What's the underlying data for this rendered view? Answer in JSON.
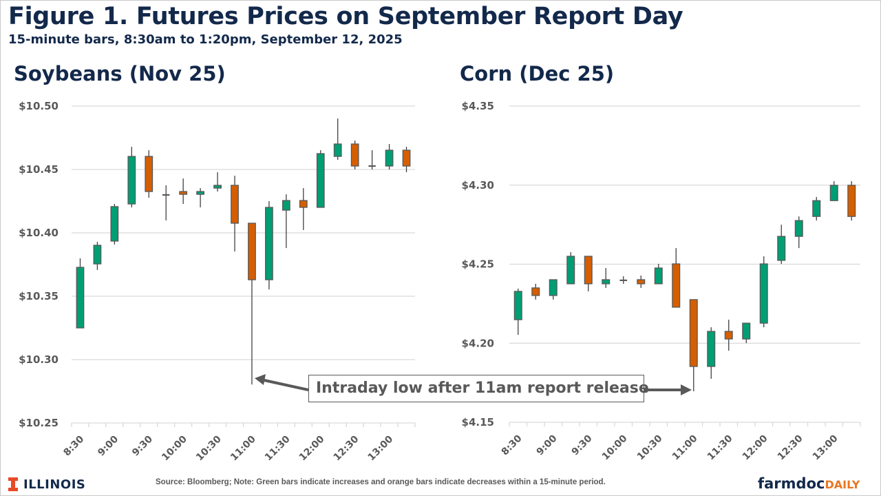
{
  "header": {
    "title": "Figure 1. Futures Prices on September Report Day",
    "subtitle": "15-minute bars, 8:30am to 1:20pm, September 12, 2025"
  },
  "colors": {
    "increase": "#009e73",
    "decrease": "#d55e00",
    "outline": "#595959",
    "wick": "#404040",
    "gridline": "#d9d9d9",
    "title": "#13294b",
    "illinois_orange": "#e84a27",
    "farmdoc_orange": "#e87722"
  },
  "annotation": {
    "text": "Intraday low after 11am report release"
  },
  "footer": {
    "note": "Source: Bloomberg; Note: Green bars indicate increases and orange bars indicate decreases within a 15-minute period.",
    "left_logo": "ILLINOIS",
    "right_logo_a": "farmdoc",
    "right_logo_b": "DAILY"
  },
  "chart_data": [
    {
      "type": "candlestick",
      "title": "Soybeans (Nov 25)",
      "xlabel": "",
      "ylabel": "",
      "ylim": [
        10.25,
        10.5
      ],
      "yticks": [
        10.25,
        10.3,
        10.35,
        10.4,
        10.45,
        10.5
      ],
      "ytick_labels": [
        "$10.25",
        "$10.30",
        "$10.35",
        "$10.40",
        "$10.45",
        "$10.50"
      ],
      "xtick_labels": [
        "8:30",
        "9:00",
        "9:30",
        "10:00",
        "10:30",
        "11:00",
        "11:30",
        "12:00",
        "12:30",
        "13:00"
      ],
      "grid": true,
      "x": [
        "8:30",
        "8:45",
        "9:00",
        "9:15",
        "9:30",
        "9:45",
        "10:00",
        "10:15",
        "10:30",
        "10:45",
        "11:00",
        "11:15",
        "11:30",
        "11:45",
        "12:00",
        "12:15",
        "12:30",
        "12:45",
        "13:00",
        "13:15"
      ],
      "open": [
        10.325,
        10.3755,
        10.3935,
        10.4228,
        10.4603,
        10.4299,
        10.4326,
        10.4304,
        10.4353,
        10.4375,
        10.4076,
        10.363,
        10.4179,
        10.4255,
        10.4201,
        10.4603,
        10.4701,
        10.4527,
        10.4527,
        10.4652
      ],
      "high": [
        10.3799,
        10.3929,
        10.4228,
        10.4679,
        10.4652,
        10.4375,
        10.4429,
        10.4353,
        10.4478,
        10.4451,
        10.4076,
        10.425,
        10.4304,
        10.4353,
        10.4652,
        10.4902,
        10.4728,
        10.4652,
        10.4701,
        10.4679
      ],
      "low": [
        10.325,
        10.3707,
        10.3908,
        10.4201,
        10.4277,
        10.4098,
        10.4228,
        10.4201,
        10.4326,
        10.3853,
        10.2804,
        10.3554,
        10.388,
        10.4022,
        10.4201,
        10.4576,
        10.45,
        10.45,
        10.45,
        10.4478
      ],
      "close": [
        10.3728,
        10.3902,
        10.4207,
        10.4603,
        10.4326,
        10.4299,
        10.4304,
        10.4326,
        10.4375,
        10.4076,
        10.363,
        10.4201,
        10.4255,
        10.4201,
        10.4625,
        10.4701,
        10.4527,
        10.4527,
        10.4652,
        10.4527
      ]
    },
    {
      "type": "candlestick",
      "title": "Corn (Dec 25)",
      "xlabel": "",
      "ylabel": "",
      "ylim": [
        4.15,
        4.35
      ],
      "yticks": [
        4.15,
        4.2,
        4.25,
        4.3,
        4.35
      ],
      "ytick_labels": [
        "$4.15",
        "$4.20",
        "$4.25",
        "$4.30",
        "$4.35"
      ],
      "xtick_labels": [
        "8:30",
        "9:00",
        "9:30",
        "10:00",
        "10:30",
        "11:00",
        "11:30",
        "12:00",
        "12:30",
        "13:00"
      ],
      "grid": true,
      "x": [
        "8:30",
        "8:45",
        "9:00",
        "9:15",
        "9:30",
        "9:45",
        "10:00",
        "10:15",
        "10:30",
        "10:45",
        "11:00",
        "11:15",
        "11:30",
        "11:45",
        "12:00",
        "12:15",
        "12:30",
        "12:45",
        "13:00",
        "13:15"
      ],
      "open": [
        4.2149,
        4.235,
        4.2302,
        4.2376,
        4.255,
        4.2376,
        4.2398,
        4.2402,
        4.2376,
        4.2502,
        4.2276,
        4.1853,
        4.2075,
        4.2027,
        4.2127,
        4.2524,
        4.2676,
        4.2802,
        4.2902,
        4.2999
      ],
      "high": [
        4.2345,
        4.2376,
        4.2402,
        4.2576,
        4.255,
        4.2476,
        4.2424,
        4.2428,
        4.2502,
        4.2602,
        4.2276,
        4.2101,
        4.2149,
        4.2127,
        4.255,
        4.275,
        4.2802,
        4.2925,
        4.3025,
        4.3025
      ],
      "low": [
        4.2053,
        4.2276,
        4.2276,
        4.2376,
        4.2328,
        4.235,
        4.2376,
        4.235,
        4.2376,
        4.2228,
        4.1696,
        4.1775,
        4.1953,
        4.2001,
        4.2101,
        4.2502,
        4.2602,
        4.2776,
        4.2902,
        4.2776
      ],
      "close": [
        4.2328,
        4.2302,
        4.2402,
        4.255,
        4.2376,
        4.2402,
        4.2398,
        4.2376,
        4.2476,
        4.2228,
        4.1853,
        4.2075,
        4.2027,
        4.2127,
        4.2502,
        4.2676,
        4.2776,
        4.2902,
        4.2999,
        4.2802
      ]
    }
  ]
}
